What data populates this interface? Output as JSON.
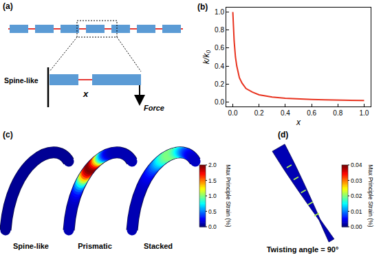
{
  "panel_a": {
    "label": "(a)",
    "structure_label": "Spine-like",
    "gap_label": "x",
    "force_label": "Force"
  },
  "chart_data": {
    "type": "line",
    "panel_label": "(b)",
    "x_label": "x",
    "y_label": "k/k₀",
    "x": [
      0,
      0.005,
      0.01,
      0.02,
      0.03,
      0.05,
      0.07,
      0.1,
      0.15,
      0.2,
      0.3,
      0.4,
      0.5,
      0.6,
      0.7,
      0.8,
      0.9,
      1.0
    ],
    "values": [
      1.0,
      0.82,
      0.68,
      0.5,
      0.4,
      0.27,
      0.21,
      0.15,
      0.11,
      0.08,
      0.055,
      0.042,
      0.034,
      0.028,
      0.024,
      0.021,
      0.019,
      0.017
    ],
    "color": "#e8321e",
    "xlim": [
      -0.05,
      1.05
    ],
    "ylim": [
      -0.05,
      1.05
    ],
    "xticks": [
      {
        "value": 0,
        "label": "0.0"
      },
      {
        "value": 0.2,
        "label": "0.2"
      },
      {
        "value": 0.4,
        "label": "0.4"
      },
      {
        "value": 0.6,
        "label": "0.6"
      },
      {
        "value": 0.8,
        "label": "0.8"
      },
      {
        "value": 1,
        "label": "1.0"
      }
    ],
    "yticks": [
      {
        "value": 0,
        "label": "0.0"
      },
      {
        "value": 0.2,
        "label": "0.2"
      },
      {
        "value": 0.4,
        "label": "0.4"
      },
      {
        "value": 0.6,
        "label": "0.6"
      },
      {
        "value": 0.8,
        "label": "0.8"
      },
      {
        "value": 1,
        "label": "1.0"
      }
    ],
    "grid": false
  },
  "panel_c": {
    "label": "(c)",
    "items": [
      "Spine-like",
      "Prismatic",
      "Stacked"
    ],
    "colorbar": {
      "title": "Max Principle Strain (%)",
      "range": [
        0,
        2
      ],
      "ticks": [
        {
          "value": 0,
          "label": "0.0"
        },
        {
          "value": 0.5,
          "label": "0.5"
        },
        {
          "value": 1,
          "label": "1.0"
        },
        {
          "value": 1.5,
          "label": "1.5"
        },
        {
          "value": 2,
          "label": "2.0"
        }
      ]
    }
  },
  "panel_d": {
    "label": "(d)",
    "caption": "Twisting angle = 90°",
    "colorbar": {
      "title": "Max Principle Strain (%)",
      "range": [
        0,
        0.04
      ],
      "ticks": [
        {
          "value": 0,
          "label": "0.00"
        },
        {
          "value": 0.01,
          "label": "0.01"
        },
        {
          "value": 0.02,
          "label": "0.02"
        },
        {
          "value": 0.03,
          "label": "0.03"
        },
        {
          "value": 0.04,
          "label": "0.04"
        }
      ]
    }
  }
}
